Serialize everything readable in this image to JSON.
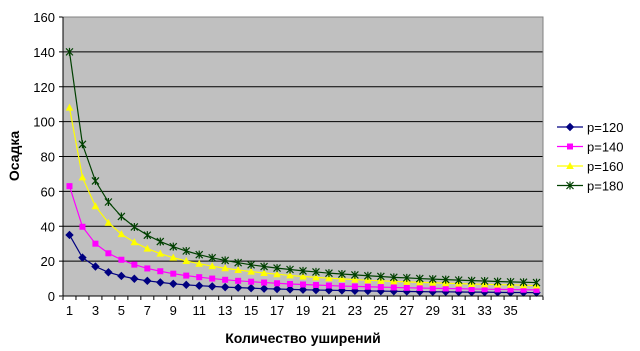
{
  "chart_data": {
    "type": "line",
    "title": "",
    "xlabel": "Количество уширений",
    "ylabel": "Осадка",
    "x": [
      1,
      2,
      3,
      4,
      5,
      6,
      7,
      8,
      9,
      10,
      11,
      12,
      13,
      14,
      15,
      16,
      17,
      18,
      19,
      20,
      21,
      22,
      23,
      24,
      25,
      26,
      27,
      28,
      29,
      30,
      31,
      32,
      33,
      34,
      35,
      36,
      37
    ],
    "x_tick_labels": [
      "1",
      "3",
      "5",
      "7",
      "9",
      "11",
      "13",
      "15",
      "17",
      "19",
      "21",
      "23",
      "25",
      "27",
      "29",
      "31",
      "33",
      "35"
    ],
    "ylim": [
      0,
      160
    ],
    "y_ticks": [
      0,
      20,
      40,
      60,
      80,
      100,
      120,
      140,
      160
    ],
    "grid": "horizontal",
    "plot_background": "#c0c0c0",
    "legend_position": "right",
    "series": [
      {
        "name": "p=120",
        "color": "#000080",
        "marker": "diamond",
        "values": [
          35.0,
          22.0,
          16.9,
          13.6,
          11.5,
          9.9,
          8.7,
          7.8,
          7.0,
          6.4,
          5.9,
          5.5,
          5.1,
          4.8,
          4.5,
          4.2,
          4.0,
          3.8,
          3.6,
          3.4,
          3.3,
          3.2,
          3.0,
          2.9,
          2.8,
          2.7,
          2.6,
          2.5,
          2.4,
          2.4,
          2.3,
          2.2,
          2.2,
          2.1,
          2.0,
          2.0,
          1.9
        ]
      },
      {
        "name": "p=140",
        "color": "#ff00ff",
        "marker": "square",
        "values": [
          63.0,
          39.7,
          30.0,
          24.5,
          20.8,
          18.0,
          15.8,
          14.2,
          12.8,
          11.7,
          10.8,
          10.0,
          9.3,
          8.7,
          8.2,
          7.7,
          7.3,
          6.9,
          6.6,
          6.3,
          6.0,
          5.7,
          5.5,
          5.3,
          5.1,
          4.9,
          4.7,
          4.6,
          4.4,
          4.3,
          4.2,
          4.0,
          3.9,
          3.8,
          3.7,
          3.6,
          3.5
        ]
      },
      {
        "name": "p=160",
        "color": "#ffff00",
        "marker": "triangle",
        "values": [
          108.0,
          68.0,
          51.5,
          42.0,
          35.5,
          30.8,
          27.2,
          24.3,
          22.0,
          20.1,
          18.5,
          17.1,
          15.9,
          14.9,
          14.0,
          13.2,
          12.5,
          11.8,
          11.2,
          10.7,
          10.2,
          9.8,
          9.4,
          9.0,
          8.7,
          8.4,
          8.1,
          7.8,
          7.6,
          7.3,
          7.1,
          6.9,
          6.7,
          6.5,
          6.4,
          6.2,
          6.0
        ]
      },
      {
        "name": "p=180",
        "color": "#004000",
        "marker": "star",
        "values": [
          140.0,
          87.0,
          66.0,
          53.9,
          45.6,
          39.6,
          34.9,
          31.2,
          28.3,
          25.8,
          23.7,
          21.9,
          20.4,
          19.1,
          17.9,
          16.9,
          16.0,
          15.2,
          14.4,
          13.8,
          13.1,
          12.6,
          12.1,
          11.6,
          11.2,
          10.7,
          10.4,
          10.0,
          9.7,
          9.4,
          9.1,
          8.8,
          8.6,
          8.3,
          8.1,
          7.9,
          7.7
        ]
      }
    ]
  }
}
